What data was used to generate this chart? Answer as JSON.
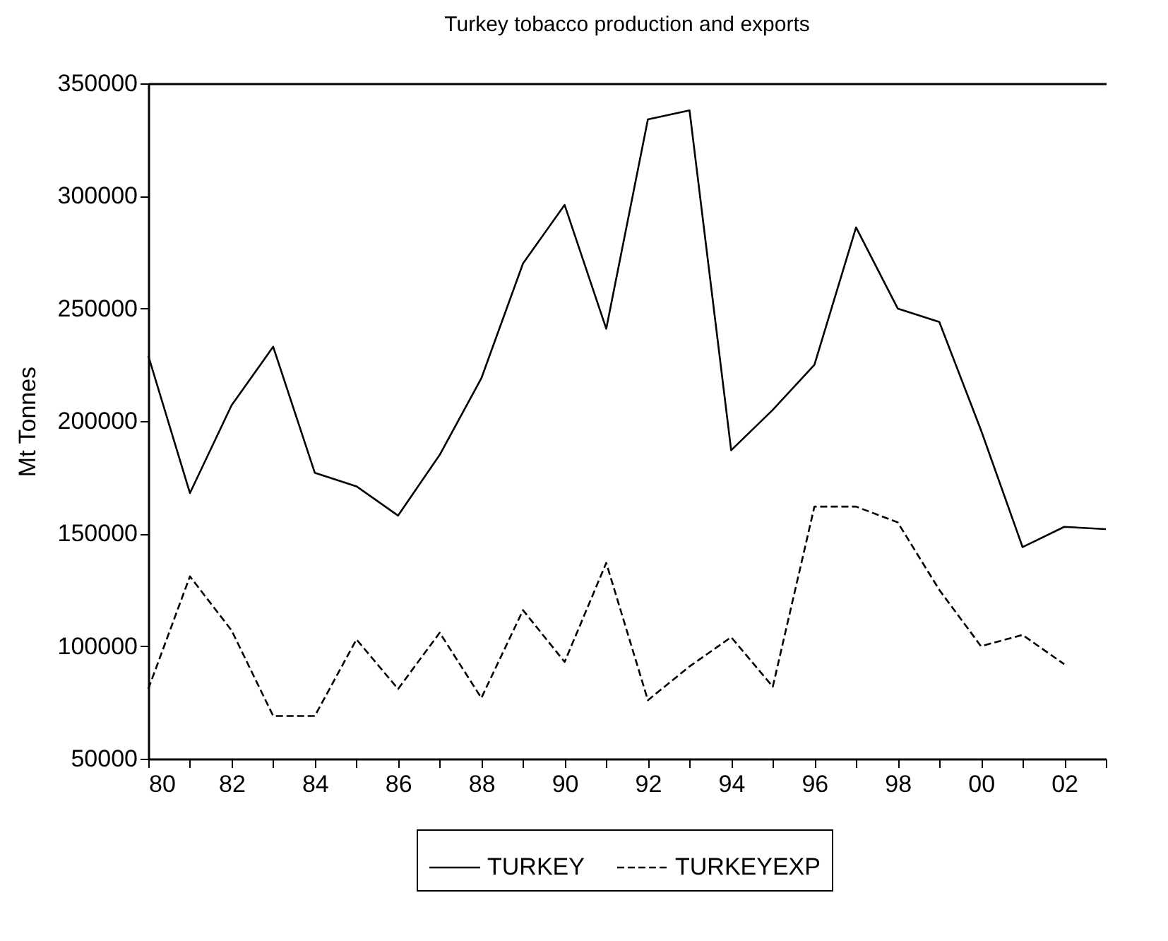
{
  "chart_data": {
    "type": "line",
    "title": "Turkey tobacco production and exports",
    "ylabel": "Mt Tonnes",
    "x": [
      1980,
      1981,
      1982,
      1983,
      1984,
      1985,
      1986,
      1987,
      1988,
      1989,
      1990,
      1991,
      1992,
      1993,
      1994,
      1995,
      1996,
      1997,
      1998,
      1999,
      2000,
      2001,
      2002,
      2003
    ],
    "series": [
      {
        "name": "TURKEY",
        "color": "#000000",
        "line_style": "solid",
        "values": [
          229000,
          168000,
          207000,
          233000,
          177000,
          171000,
          158000,
          185000,
          219000,
          270000,
          296000,
          241000,
          334000,
          338000,
          187000,
          205000,
          225000,
          286000,
          250000,
          244000,
          196000,
          144000,
          153000,
          152000
        ]
      },
      {
        "name": "TURKEYEXP",
        "color": "#000000",
        "line_style": "dashed",
        "values": [
          81000,
          131000,
          107000,
          69000,
          69000,
          103000,
          81000,
          106000,
          77000,
          116000,
          93000,
          137000,
          76000,
          91000,
          104000,
          82000,
          162000,
          162000,
          155000,
          125000,
          100000,
          105000,
          92000,
          null
        ]
      }
    ],
    "xlim": [
      1980,
      2003
    ],
    "xticks": [
      {
        "value": 1980,
        "label": "80"
      },
      {
        "value": 1981,
        "label": null
      },
      {
        "value": 1982,
        "label": "82"
      },
      {
        "value": 1983,
        "label": null
      },
      {
        "value": 1984,
        "label": "84"
      },
      {
        "value": 1985,
        "label": null
      },
      {
        "value": 1986,
        "label": "86"
      },
      {
        "value": 1987,
        "label": null
      },
      {
        "value": 1988,
        "label": "88"
      },
      {
        "value": 1989,
        "label": null
      },
      {
        "value": 1990,
        "label": "90"
      },
      {
        "value": 1991,
        "label": null
      },
      {
        "value": 1992,
        "label": "92"
      },
      {
        "value": 1993,
        "label": null
      },
      {
        "value": 1994,
        "label": "94"
      },
      {
        "value": 1995,
        "label": null
      },
      {
        "value": 1996,
        "label": "96"
      },
      {
        "value": 1997,
        "label": null
      },
      {
        "value": 1998,
        "label": "98"
      },
      {
        "value": 1999,
        "label": null
      },
      {
        "value": 2000,
        "label": "00"
      },
      {
        "value": 2001,
        "label": null
      },
      {
        "value": 2002,
        "label": "02"
      },
      {
        "value": 2003,
        "label": null
      }
    ],
    "ylim": [
      50000,
      350000
    ],
    "yticks": [
      50000,
      100000,
      150000,
      200000,
      250000,
      300000,
      350000
    ],
    "grid": false,
    "legend": "bottom",
    "marker": "none"
  }
}
